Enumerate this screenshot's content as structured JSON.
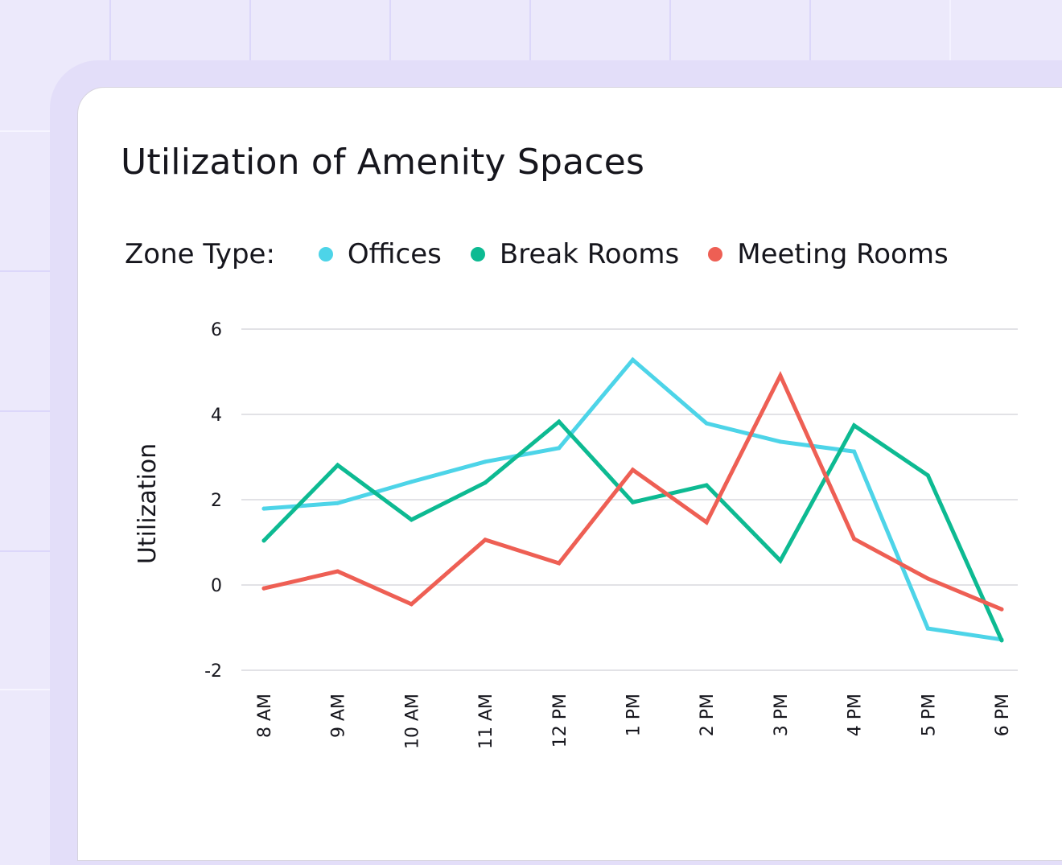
{
  "chart_data": {
    "type": "line",
    "title": "Utilization of Amenity Spaces",
    "legend_title": "Zone Type:",
    "legend_position": "top",
    "xlabel": "",
    "ylabel": "Utilization",
    "ylim": [
      -2,
      6
    ],
    "yticks": [
      6,
      4,
      2,
      0,
      -2
    ],
    "grid": true,
    "categories": [
      "8 AM",
      "9 AM",
      "10 AM",
      "11 AM",
      "12 PM",
      "1 PM",
      "2 PM",
      "3 PM",
      "4 PM",
      "5 PM",
      "6 PM"
    ],
    "series": [
      {
        "name": "Offices",
        "color": "#4dd4e8",
        "values": [
          1.79,
          1.92,
          2.42,
          2.89,
          3.21,
          5.28,
          3.79,
          3.36,
          3.13,
          -1.02,
          -1.28
        ]
      },
      {
        "name": "Break Rooms",
        "color": "#0dba92",
        "values": [
          1.04,
          2.81,
          1.53,
          2.4,
          3.83,
          1.94,
          2.34,
          0.57,
          3.74,
          2.57,
          -1.3
        ]
      },
      {
        "name": "Meeting Rooms",
        "color": "#ee5f54",
        "values": [
          -0.08,
          0.32,
          -0.45,
          1.06,
          0.51,
          2.7,
          1.47,
          4.91,
          1.08,
          0.15,
          -0.57
        ]
      }
    ]
  }
}
